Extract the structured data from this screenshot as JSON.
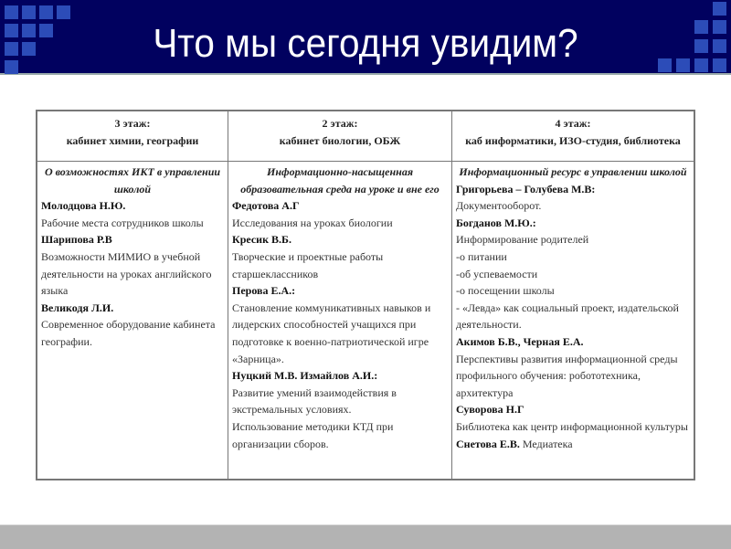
{
  "title": "Что мы сегодня увидим?",
  "colors": {
    "header_bg": "#01015f",
    "squares": "#2c4cb8",
    "footer": "#b3b3b3"
  },
  "columns": [
    {
      "floor": "3 этаж:",
      "rooms": "кабинет химии, географии",
      "topic": "О возможностях ИКТ в управлении школой",
      "entries": [
        {
          "name": "Молодцова Н.Ю.",
          "text": "Рабочие места сотрудников школы"
        },
        {
          "name": "Шарипова Р.В",
          "text": "Возможности МИМИО в учебной деятельности на уроках английского языка"
        },
        {
          "name": "Великодя Л.И.",
          "text": "Современное оборудование кабинета географии."
        }
      ]
    },
    {
      "floor": "2 этаж:",
      "rooms": "кабинет биологии, ОБЖ",
      "topic": "Информационно-насыщенная образовательная среда на уроке и вне его",
      "entries": [
        {
          "name": "Федотова А.Г",
          "text": "Исследования на уроках биологии"
        },
        {
          "name": "Кресик В.Б.",
          "text": "Творческие и проектные  работы старшеклассников"
        },
        {
          "name": "Перова Е.А.:",
          "text": "Становление коммуникативных навыков и лидерских способностей  учащихся при подготовке к военно-патриотической игре «Зарница»."
        },
        {
          "name": "Нуцкий М.В. Измайлов А.И.:",
          "text": "Развитие умений взаимодействия в экстремальных условиях.\nИспользование методики КТД при организации сборов."
        }
      ]
    },
    {
      "floor": "4 этаж:",
      "rooms": "каб информатики, ИЗО-студия, библиотека",
      "topic": "Информационный ресурс в управлении школой",
      "entries": [
        {
          "name": "Григорьева – Голубева М.В:",
          "text": "Документооборот."
        },
        {
          "name": "Богданов М.Ю.:",
          "text": "Информирование родителей\n-о питании\n-об успеваемости\n-о посещении школы\n- «Левда» как социальный проект, издательской деятельности."
        },
        {
          "name": "Акимов Б.В., Черная Е.А.",
          "text": "Перспективы развития информационной среды профильного обучения: робототехника, архитектура"
        },
        {
          "name": "Суворова Н.Г",
          "text": "Библиотека как центр информационной культуры"
        },
        {
          "name": "Снетова Е.В.",
          "text": "Медиатека"
        }
      ]
    }
  ]
}
